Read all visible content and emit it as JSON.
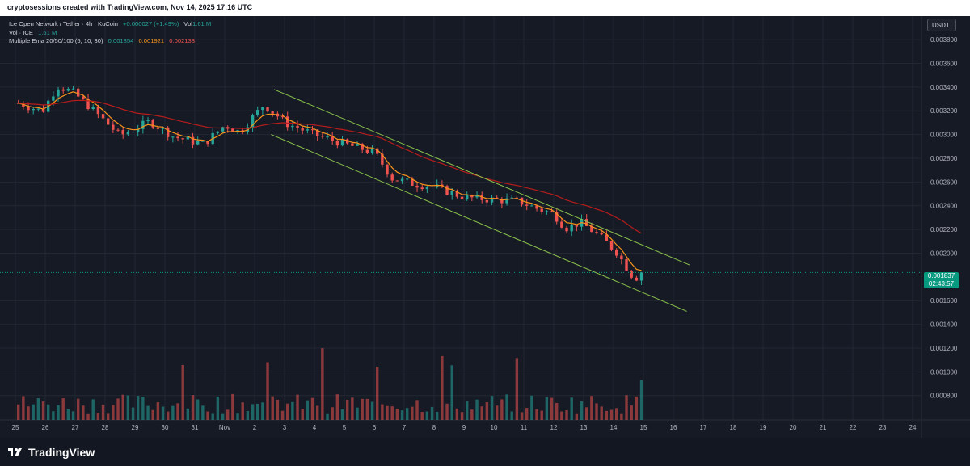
{
  "header": {
    "attribution": "cryptosessions created with TradingView.com, Nov 14, 2025 17:16 UTC"
  },
  "legend": {
    "symbol": "Ice Open Network / Tether · 4h · KuCoin",
    "change": "+0.000027 (+1.49%)",
    "vol_inline_label": "Vol",
    "vol_inline_value": "1.61 M",
    "volume_label": "Vol · ICE",
    "volume_value": "1.61 M",
    "ema_label": "Multiple Ema 20/50/100 (5, 10, 30)",
    "ema_values": [
      "0.001854",
      "0.001921",
      "0.002133"
    ]
  },
  "currency_button": "USDT",
  "price_tag": {
    "price": "0.001837",
    "countdown": "02:43:57"
  },
  "footer": {
    "brand": "TradingView"
  },
  "colors": {
    "bull": "#26a69a",
    "bear": "#ef5350",
    "ema_fast": "#f7931a",
    "ema_slow": "#b71c1c",
    "channel": "#8bc34a",
    "background": "#161a25"
  },
  "icons": {
    "brand_logo": "tradingview-logo-icon"
  },
  "chart_data": {
    "type": "candlestick",
    "interval": "4h",
    "x_tick_labels": [
      "25",
      "26",
      "27",
      "28",
      "29",
      "30",
      "31",
      "Nov",
      "2",
      "3",
      "4",
      "5",
      "6",
      "7",
      "8",
      "9",
      "10",
      "11",
      "12",
      "13",
      "14",
      "15",
      "16",
      "17",
      "18",
      "19",
      "20",
      "21",
      "22",
      "23",
      "24"
    ],
    "y_tick_labels": [
      "0.003800",
      "0.003600",
      "0.003400",
      "0.003200",
      "0.003000",
      "0.002800",
      "0.002600",
      "0.002400",
      "0.002200",
      "0.002000",
      "0.001600",
      "0.001400",
      "0.001200",
      "0.001000",
      "0.000800"
    ],
    "ylim": [
      0.00073,
      0.00393
    ],
    "y_ticks": [
      0.0038,
      0.0036,
      0.0034,
      0.0032,
      0.003,
      0.0028,
      0.0026,
      0.0024,
      0.0022,
      0.002,
      0.0016,
      0.0014,
      0.0012,
      0.001,
      0.0008
    ],
    "anchor_points": [
      {
        "day": 0.1,
        "price": 0.003265
      },
      {
        "day": 0.9,
        "price": 0.003195
      },
      {
        "day": 1.4,
        "price": 0.00341
      },
      {
        "day": 1.9,
        "price": 0.00336
      },
      {
        "day": 2.5,
        "price": 0.00323
      },
      {
        "day": 3.5,
        "price": 0.00299
      },
      {
        "day": 4.5,
        "price": 0.00311
      },
      {
        "day": 5.3,
        "price": 0.00298
      },
      {
        "day": 6.3,
        "price": 0.00292
      },
      {
        "day": 7.0,
        "price": 0.00308
      },
      {
        "day": 7.5,
        "price": 0.00302
      },
      {
        "day": 8.3,
        "price": 0.00325
      },
      {
        "day": 9.1,
        "price": 0.00309
      },
      {
        "day": 10.0,
        "price": 0.003
      },
      {
        "day": 11.0,
        "price": 0.00292
      },
      {
        "day": 12.0,
        "price": 0.00285
      },
      {
        "day": 12.6,
        "price": 0.00263
      },
      {
        "day": 13.4,
        "price": 0.00258
      },
      {
        "day": 14.0,
        "price": 0.00256
      },
      {
        "day": 15.0,
        "price": 0.00247
      },
      {
        "day": 16.0,
        "price": 0.00245
      },
      {
        "day": 16.8,
        "price": 0.00244
      },
      {
        "day": 17.4,
        "price": 0.00238
      },
      {
        "day": 18.0,
        "price": 0.00233
      },
      {
        "day": 18.4,
        "price": 0.00221
      },
      {
        "day": 18.9,
        "price": 0.00226
      },
      {
        "day": 19.5,
        "price": 0.00215
      },
      {
        "day": 20.1,
        "price": 0.00201
      },
      {
        "day": 20.7,
        "price": 0.00178
      },
      {
        "day": 20.95,
        "price": 0.001837
      }
    ],
    "volume_ylim": [
      0,
      1.9
    ],
    "channel": {
      "upper": [
        {
          "day": 8.65,
          "price": 0.00338
        },
        {
          "day": 22.55,
          "price": 0.0019
        }
      ],
      "lower": [
        {
          "day": 8.55,
          "price": 0.003
        },
        {
          "day": 22.45,
          "price": 0.00151
        }
      ]
    },
    "current_price": 0.001837
  }
}
